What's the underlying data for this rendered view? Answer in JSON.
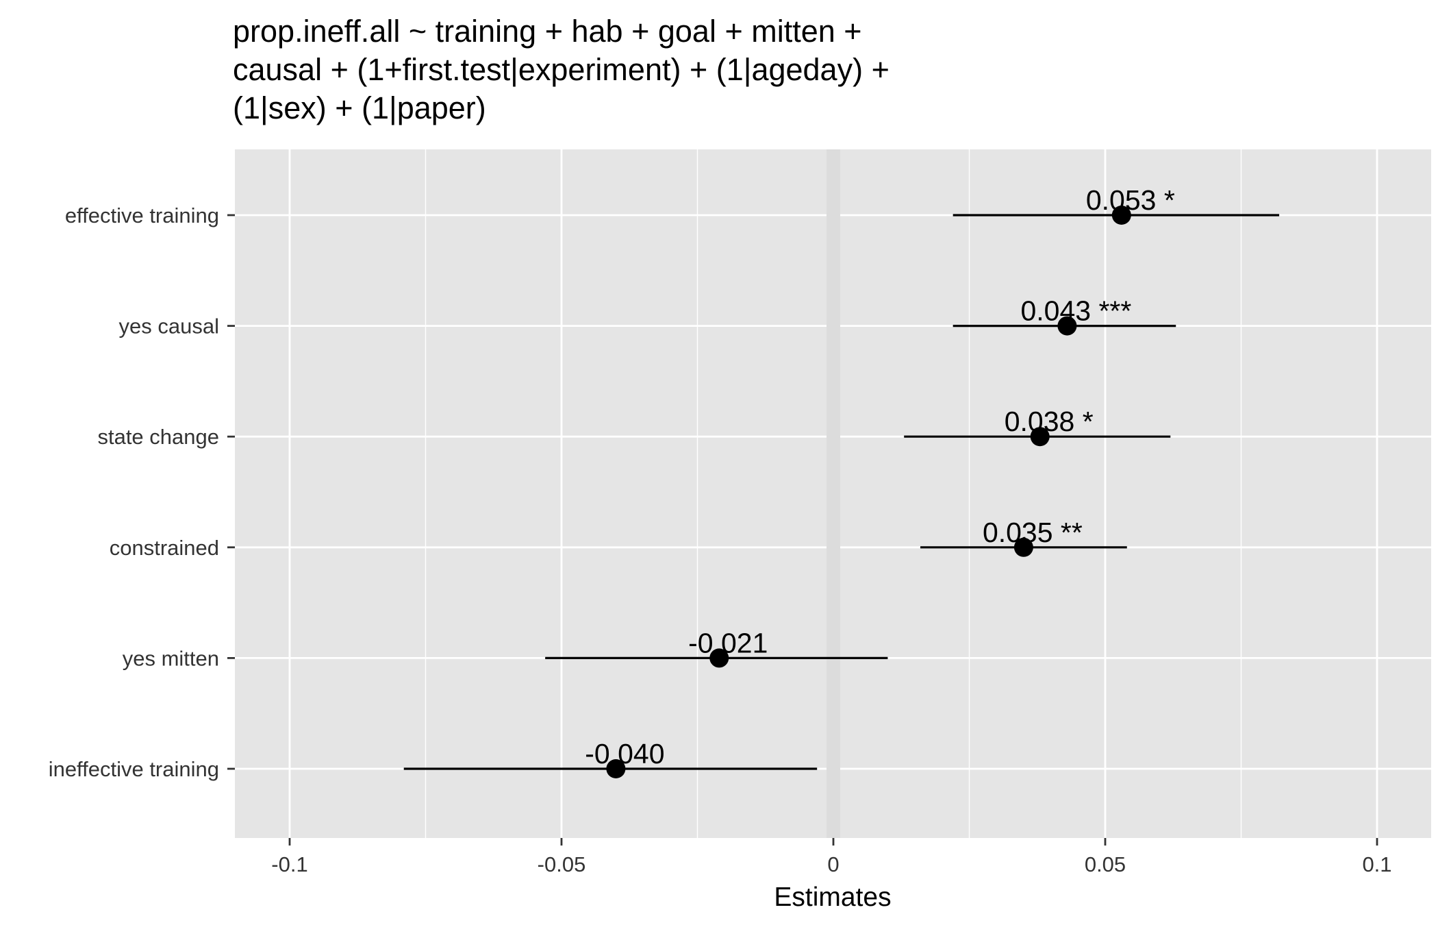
{
  "chart_data": {
    "type": "forest",
    "title": "prop.ineff.all ~ training + hab + goal + mitten + causal + (1+first.test|experiment) + (1|ageday) + (1|sex) + (1|paper)",
    "title_lines": [
      "prop.ineff.all ~ training + hab + goal + mitten +",
      "causal + (1+first.test|experiment) + (1|ageday) +",
      "(1|sex) + (1|paper)"
    ],
    "xlabel": "Estimates",
    "ylabel": "",
    "xlim": [
      -0.11,
      0.11
    ],
    "xticks": [
      -0.1,
      -0.05,
      0,
      0.05,
      0.1
    ],
    "xtick_labels": [
      "-0.1",
      "-0.05",
      "0",
      "0.05",
      "0.1"
    ],
    "grid": true,
    "terms": [
      {
        "name": "effective training",
        "estimate": 0.053,
        "ci_low": 0.022,
        "ci_high": 0.082,
        "label": "0.053 *"
      },
      {
        "name": "yes causal",
        "estimate": 0.043,
        "ci_low": 0.022,
        "ci_high": 0.063,
        "label": "0.043 ***"
      },
      {
        "name": "state change",
        "estimate": 0.038,
        "ci_low": 0.013,
        "ci_high": 0.062,
        "label": "0.038 *"
      },
      {
        "name": "constrained",
        "estimate": 0.035,
        "ci_low": 0.016,
        "ci_high": 0.054,
        "label": "0.035 **"
      },
      {
        "name": "yes mitten",
        "estimate": -0.021,
        "ci_low": -0.053,
        "ci_high": 0.01,
        "label": "-0.021"
      },
      {
        "name": "ineffective training",
        "estimate": -0.04,
        "ci_low": -0.079,
        "ci_high": -0.003,
        "label": "-0.040"
      }
    ],
    "colors": {
      "panel": "#e5e5e5",
      "gridline": "#ffffff",
      "zero_band": "#dcdcdc",
      "point": "#000000",
      "errorbar": "#000000"
    }
  }
}
